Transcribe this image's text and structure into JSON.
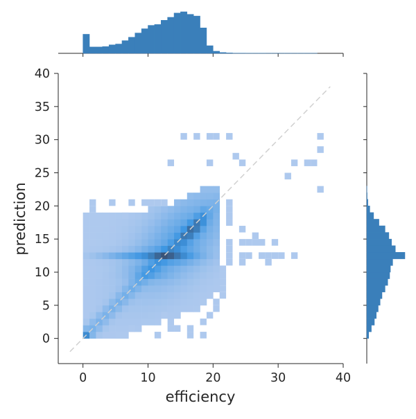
{
  "chart_data": {
    "type": "heatmap",
    "subtype": "joint-plot 2D histogram with marginal histograms",
    "xlabel": "efficiency",
    "ylabel": "prediction",
    "xlim": [
      -3.8,
      40
    ],
    "ylim": [
      -3.8,
      40
    ],
    "x_ticks": [
      0,
      10,
      20,
      30,
      40
    ],
    "y_ticks": [
      0,
      5,
      10,
      15,
      20,
      25,
      30,
      35,
      40
    ],
    "grid": false,
    "legend": "none",
    "reference_line": {
      "from": [
        -2,
        -2
      ],
      "to": [
        38,
        38
      ],
      "style": "dashed",
      "color": "#d0d0d0"
    },
    "colors": {
      "low": "#aec9ee",
      "mid": "#3d96e2",
      "high": "#3a5478",
      "marginal": "#3a7fba"
    },
    "bin_size": 1,
    "density_model": {
      "components": [
        {
          "mx": 15,
          "my": 15,
          "sx": 4.5,
          "sy": 4.5,
          "rho": 0.6,
          "w": 1.0
        },
        {
          "mx": 13,
          "my": 12.5,
          "sx": 3.0,
          "sy": 0.6,
          "rho": 0.0,
          "w": 1.4
        },
        {
          "mx": 17,
          "my": 16.5,
          "sx": 1.5,
          "sy": 1.5,
          "rho": 0.8,
          "w": 1.0
        },
        {
          "mx": 10,
          "my": 10,
          "sx": 2.0,
          "sy": 0.7,
          "rho": 0.0,
          "w": 0.6
        },
        {
          "mx": 7,
          "my": 12.5,
          "sx": 3.0,
          "sy": 0.4,
          "rho": 0.0,
          "w": 0.7
        },
        {
          "mx": 0.5,
          "my": 0.5,
          "sx": 0.5,
          "sy": 0.5,
          "rho": 0.0,
          "w": 1.2
        }
      ],
      "diagonal_stripe_weight": 0.55
    },
    "extent": {
      "x_min": 0,
      "x_max": 21,
      "y_bottom": [
        [
          0,
          0
        ],
        [
          5,
          0
        ],
        [
          7,
          1
        ],
        [
          9,
          2
        ],
        [
          12,
          3
        ],
        [
          15,
          4
        ],
        [
          18,
          5
        ],
        [
          20,
          7
        ],
        [
          21,
          10
        ]
      ],
      "y_top": [
        [
          0,
          19
        ],
        [
          4,
          19
        ],
        [
          9,
          19
        ],
        [
          13,
          20
        ],
        [
          17,
          22
        ],
        [
          21,
          23
        ]
      ]
    },
    "outlier_cells": [
      [
        15,
        30
      ],
      [
        17,
        30
      ],
      [
        19,
        30
      ],
      [
        20,
        30
      ],
      [
        22,
        30
      ],
      [
        36,
        30
      ],
      [
        36,
        28
      ],
      [
        35,
        26
      ],
      [
        34,
        26
      ],
      [
        32,
        26
      ],
      [
        31,
        24
      ],
      [
        23,
        27
      ],
      [
        24,
        26
      ],
      [
        13,
        26
      ],
      [
        19,
        26
      ],
      [
        36,
        22
      ],
      [
        22,
        20
      ],
      [
        22,
        19
      ],
      [
        22,
        18
      ],
      [
        22,
        17
      ],
      [
        24,
        16
      ],
      [
        26,
        15
      ],
      [
        27,
        14
      ],
      [
        29,
        14
      ],
      [
        24,
        14
      ],
      [
        25,
        14
      ],
      [
        26,
        14
      ],
      [
        27,
        12
      ],
      [
        28,
        12
      ],
      [
        30,
        12
      ],
      [
        32,
        12
      ],
      [
        28,
        11
      ],
      [
        24,
        12
      ],
      [
        24,
        11
      ],
      [
        25,
        12
      ],
      [
        29,
        12
      ],
      [
        22,
        14
      ],
      [
        22,
        13
      ],
      [
        22,
        12
      ],
      [
        22,
        11
      ],
      [
        21,
        10
      ],
      [
        21,
        9
      ],
      [
        21,
        8
      ],
      [
        21,
        7
      ],
      [
        21,
        6
      ],
      [
        20,
        5
      ],
      [
        20,
        4
      ],
      [
        19,
        3
      ],
      [
        18,
        2
      ],
      [
        16,
        1
      ],
      [
        18,
        0
      ],
      [
        16,
        0
      ],
      [
        14,
        1
      ],
      [
        13,
        2
      ],
      [
        12,
        3
      ],
      [
        13,
        1
      ],
      [
        11,
        0
      ],
      [
        5,
        0
      ],
      [
        6,
        0
      ],
      [
        7,
        1
      ],
      [
        1,
        20
      ],
      [
        4,
        20
      ],
      [
        7,
        20
      ],
      [
        9,
        20
      ],
      [
        10,
        20
      ],
      [
        11,
        20
      ],
      [
        12,
        20
      ],
      [
        6,
        18
      ],
      [
        3,
        17
      ],
      [
        1,
        19
      ]
    ],
    "x_marginal": {
      "values": [
        0.45,
        0.15,
        0.15,
        0.16,
        0.2,
        0.22,
        0.3,
        0.38,
        0.48,
        0.58,
        0.66,
        0.68,
        0.78,
        0.85,
        0.95,
        0.98,
        0.92,
        0.88,
        0.6,
        0.18,
        0.05,
        0.02,
        0.01,
        0.005,
        0.005,
        0.003,
        0.003,
        0.003,
        0.002,
        0.002,
        0.002,
        0.002,
        0.002,
        0.002,
        0.002,
        0.002
      ],
      "bin_start": 0,
      "bin_width": 1
    },
    "y_marginal": {
      "values": [
        0.05,
        0.12,
        0.2,
        0.25,
        0.3,
        0.35,
        0.4,
        0.48,
        0.55,
        0.6,
        0.62,
        0.68,
        1.0,
        0.75,
        0.65,
        0.58,
        0.48,
        0.32,
        0.18,
        0.08,
        0.03,
        0.01,
        0.005
      ],
      "bin_start": 0,
      "bin_width": 1
    }
  }
}
